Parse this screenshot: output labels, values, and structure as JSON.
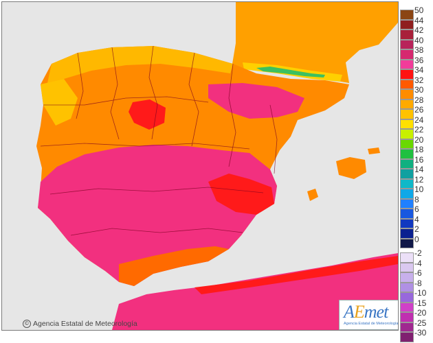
{
  "map": {
    "copyright_text": "Agencia Estatal de Meteorología",
    "logo_wordmark_a": "A",
    "logo_wordmark_e": "E",
    "logo_wordmark_rest": "met",
    "logo_subtitle": "Agencia Estatal de Meteorología",
    "colors": {
      "sea": "#e6e6e6",
      "hot": "#f2307f",
      "very_hot": "#ff1a1a",
      "warm": "#ff8a00",
      "mild": "#ffb300",
      "cool": "#f4c800",
      "borders": "#7a0020"
    }
  },
  "legend": {
    "upper": [
      {
        "label": "50",
        "color": "#8b4513"
      },
      {
        "label": "44",
        "color": "#8f1f1f"
      },
      {
        "label": "42",
        "color": "#a8203a"
      },
      {
        "label": "40",
        "color": "#b8235a"
      },
      {
        "label": "38",
        "color": "#d6286f"
      },
      {
        "label": "36",
        "color": "#f23c9a"
      },
      {
        "label": "34",
        "color": "#ff1212"
      },
      {
        "label": "32",
        "color": "#ff5a00"
      },
      {
        "label": "30",
        "color": "#ff8c00"
      },
      {
        "label": "28",
        "color": "#ffaa00"
      },
      {
        "label": "26",
        "color": "#ffc200"
      },
      {
        "label": "24",
        "color": "#ffe000"
      },
      {
        "label": "22",
        "color": "#c8f000"
      },
      {
        "label": "20",
        "color": "#6ad800"
      },
      {
        "label": "18",
        "color": "#20c040"
      },
      {
        "label": "16",
        "color": "#10b080"
      },
      {
        "label": "14",
        "color": "#10a0a0"
      },
      {
        "label": "12",
        "color": "#10b8c8"
      },
      {
        "label": "10",
        "color": "#10a8e8"
      },
      {
        "label": "8",
        "color": "#2080ff"
      },
      {
        "label": "6",
        "color": "#1858e0"
      },
      {
        "label": "4",
        "color": "#1038c0"
      },
      {
        "label": "2",
        "color": "#0a2090"
      },
      {
        "label": "0",
        "color": "#101848"
      }
    ],
    "lower": [
      {
        "label": "-2",
        "color": "#ece0f8"
      },
      {
        "label": "-4",
        "color": "#dac8f0"
      },
      {
        "label": "-6",
        "color": "#c8b0ec"
      },
      {
        "label": "-8",
        "color": "#b090e4"
      },
      {
        "label": "-10",
        "color": "#9868dc"
      },
      {
        "label": "-15",
        "color": "#d040c8"
      },
      {
        "label": "-20",
        "color": "#c02fb0"
      },
      {
        "label": "-25",
        "color": "#a02890"
      },
      {
        "label": "-30",
        "color": "#802070"
      }
    ]
  }
}
